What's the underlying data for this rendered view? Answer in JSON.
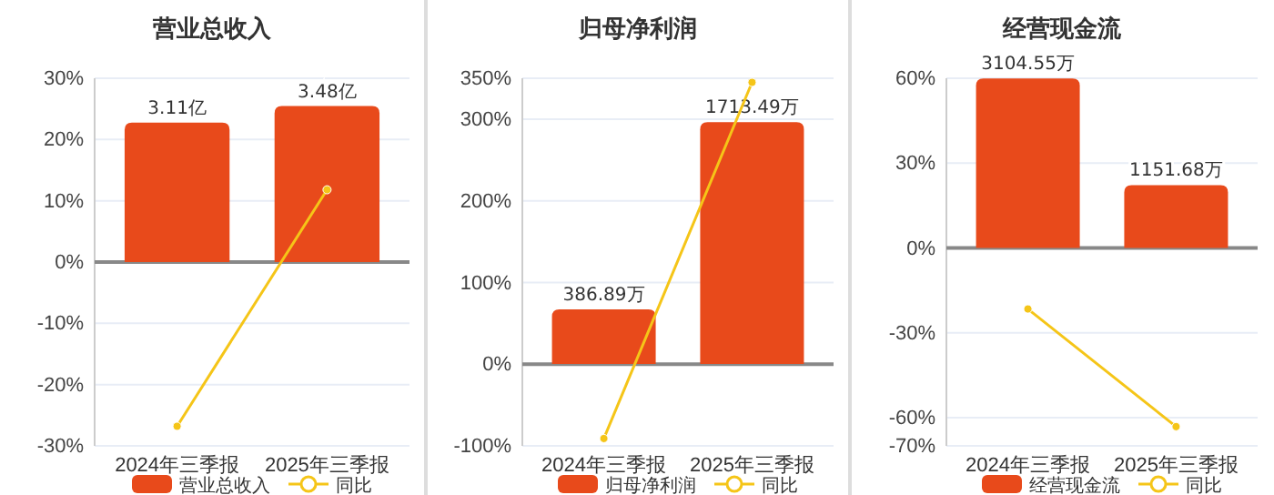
{
  "chart_data": [
    {
      "type": "bar",
      "title": "营业总收入",
      "categories": [
        "2024年三季报",
        "2025年三季报"
      ],
      "series": [
        {
          "name": "营业总收入",
          "axis": "y2",
          "color": "#e84a1b",
          "values": [
            3.11,
            3.48
          ],
          "value_labels": [
            "3.11亿",
            "3.48亿"
          ]
        },
        {
          "name": "同比",
          "type": "line",
          "color": "#f5c518",
          "values": [
            -26.8,
            11.8
          ]
        }
      ],
      "ylim": [
        -30,
        30
      ],
      "yticks": [
        {
          "value": -30,
          "label": "-30%"
        },
        {
          "value": -20,
          "label": "-20%"
        },
        {
          "value": -10,
          "label": "-10%"
        },
        {
          "value": 0,
          "label": "0%"
        },
        {
          "value": 10,
          "label": "10%"
        },
        {
          "value": 20,
          "label": "20%"
        },
        {
          "value": 30,
          "label": "30%"
        }
      ],
      "y2lim": [
        -4.1,
        4.1
      ],
      "grid": "y",
      "legend": "bottom",
      "marker": "circle"
    },
    {
      "type": "bar",
      "title": "归母净利润",
      "categories": [
        "2024年三季报",
        "2025年三季报"
      ],
      "series": [
        {
          "name": "归母净利润",
          "axis": "y2",
          "color": "#e84a1b",
          "values": [
            386.89,
            1713.49
          ],
          "value_labels": [
            "386.89万",
            "1713.49万"
          ]
        },
        {
          "name": "同比",
          "type": "line",
          "color": "#f5c518",
          "values": [
            -91,
            345
          ]
        }
      ],
      "ylim": [
        -100,
        350
      ],
      "yticks": [
        {
          "value": -100,
          "label": "-100%"
        },
        {
          "value": 0,
          "label": "0%"
        },
        {
          "value": 100,
          "label": "100%"
        },
        {
          "value": 200,
          "label": "200%"
        },
        {
          "value": 300,
          "label": "300%"
        },
        {
          "value": 350,
          "label": "350%"
        }
      ],
      "y2lim": [
        -580,
        2025
      ],
      "grid": "y",
      "legend": "bottom",
      "marker": "circle"
    },
    {
      "type": "bar",
      "title": "经营现金流",
      "categories": [
        "2024年三季报",
        "2025年三季报"
      ],
      "series": [
        {
          "name": "经营现金流",
          "axis": "y2",
          "color": "#e84a1b",
          "values": [
            3104.55,
            1151.68
          ],
          "value_labels": [
            "3104.55万",
            "1151.68万"
          ]
        },
        {
          "name": "同比",
          "type": "line",
          "color": "#f5c518",
          "values": [
            -21.6,
            -63.2
          ]
        }
      ],
      "ylim": [
        -70,
        60
      ],
      "yticks": [
        {
          "value": -70,
          "label": "-70%"
        },
        {
          "value": -60,
          "label": "-60%"
        },
        {
          "value": -30,
          "label": "-30%"
        },
        {
          "value": 0,
          "label": "0%"
        },
        {
          "value": 30,
          "label": "30%"
        },
        {
          "value": 60,
          "label": "60%"
        }
      ],
      "y2lim": [
        -3630,
        3110
      ],
      "grid": "y",
      "legend": "bottom",
      "marker": "circle"
    }
  ]
}
